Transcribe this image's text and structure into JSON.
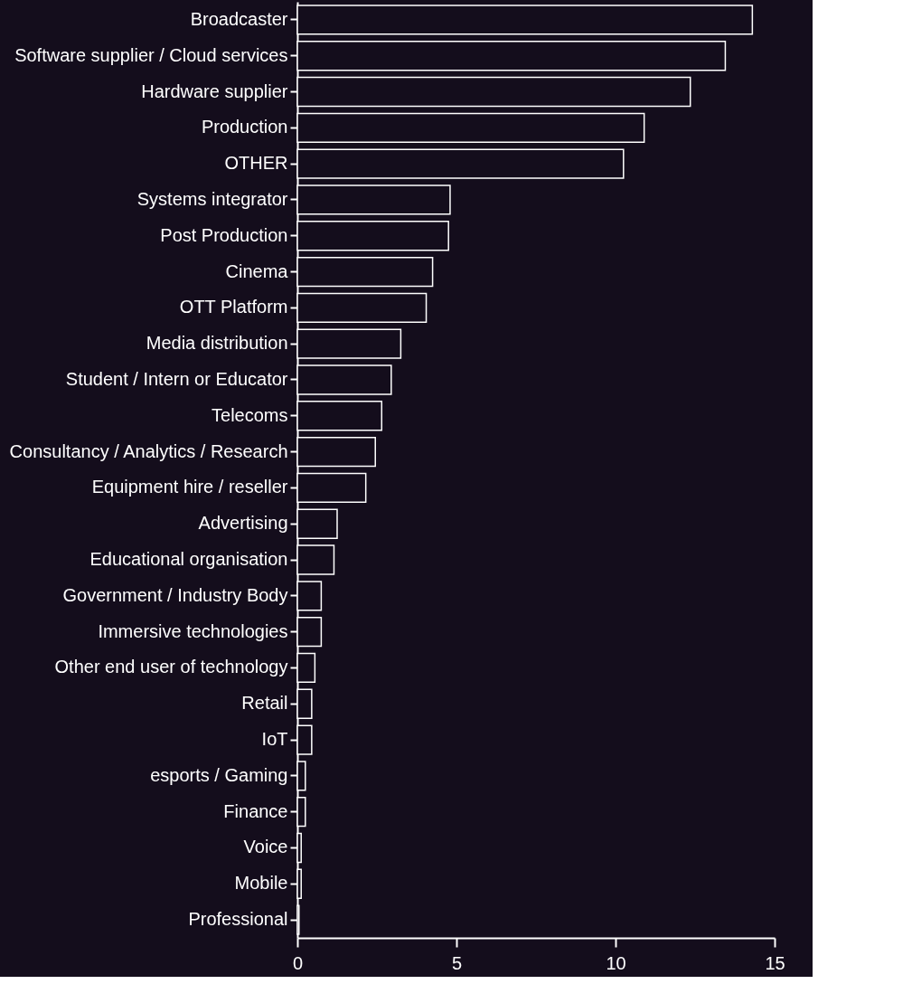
{
  "chart_data": {
    "type": "bar",
    "orientation": "horizontal",
    "categories": [
      "Broadcaster",
      "Software supplier / Cloud services",
      "Hardware supplier",
      "Production",
      "OTHER",
      "Systems integrator",
      "Post Production",
      "Cinema",
      "OTT Platform",
      "Media distribution",
      "Student / Intern or Educator",
      "Telecoms",
      "Consultancy / Analytics / Research",
      "Equipment hire / reseller",
      "Advertising",
      "Educational organisation",
      "Government / Industry Body",
      "Immersive technologies",
      "Other end user of technology",
      "Retail",
      "IoT",
      "esports / Gaming",
      "Finance",
      "Voice",
      "Mobile",
      "Professional"
    ],
    "values": [
      14.3,
      13.45,
      12.35,
      10.9,
      10.25,
      4.8,
      4.75,
      4.25,
      4.05,
      3.25,
      2.95,
      2.65,
      2.45,
      2.15,
      1.25,
      1.15,
      0.75,
      0.75,
      0.55,
      0.45,
      0.45,
      0.25,
      0.25,
      0.12,
      0.12,
      0.05
    ],
    "color": "#ffffff",
    "xlim": [
      0,
      15
    ],
    "xticks": [
      0,
      5,
      10,
      15
    ],
    "grid": false
  }
}
